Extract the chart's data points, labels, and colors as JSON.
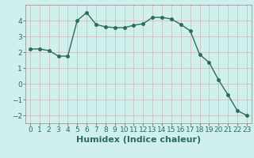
{
  "x": [
    0,
    1,
    2,
    3,
    4,
    5,
    6,
    7,
    8,
    9,
    10,
    11,
    12,
    13,
    14,
    15,
    16,
    17,
    18,
    19,
    20,
    21,
    22,
    23
  ],
  "y": [
    2.2,
    2.2,
    2.1,
    1.75,
    1.75,
    4.0,
    4.5,
    3.75,
    3.6,
    3.55,
    3.55,
    3.7,
    3.8,
    4.2,
    4.2,
    4.1,
    3.75,
    3.35,
    1.85,
    1.35,
    0.25,
    -0.7,
    -1.7,
    -2.0
  ],
  "line_color": "#2e6b5e",
  "bg_color": "#d0f0ee",
  "grid_color_major": "#c8b8b8",
  "xlabel": "Humidex (Indice chaleur)",
  "xlim": [
    -0.5,
    23.5
  ],
  "ylim": [
    -2.5,
    5.0
  ],
  "yticks": [
    -2,
    -1,
    0,
    1,
    2,
    3,
    4
  ],
  "xticks": [
    0,
    1,
    2,
    3,
    4,
    5,
    6,
    7,
    8,
    9,
    10,
    11,
    12,
    13,
    14,
    15,
    16,
    17,
    18,
    19,
    20,
    21,
    22,
    23
  ],
  "markersize": 2.5,
  "linewidth": 1.0,
  "xlabel_fontsize": 8,
  "tick_fontsize": 6.5
}
